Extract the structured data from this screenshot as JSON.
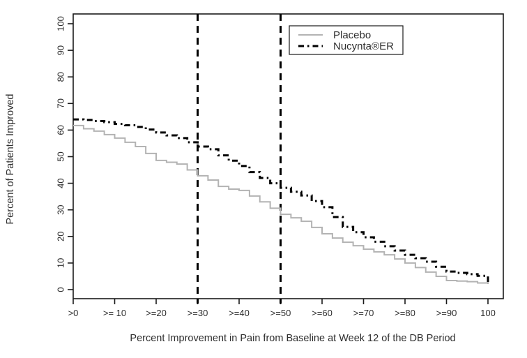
{
  "chart_data": {
    "type": "line",
    "subtype": "step-after",
    "title": "",
    "xlabel": "Percent Improvement in Pain from Baseline at Week 12 of the DB Period",
    "ylabel": "Percent of Patients Improved",
    "x_tick_values": [
      0,
      10,
      20,
      30,
      40,
      50,
      60,
      70,
      80,
      90,
      100
    ],
    "x_tick_labels": [
      ">0",
      ">= 10",
      ">=20",
      ">=30",
      ">=40",
      ">=50",
      ">=60",
      ">=70",
      ">=80",
      ">=90",
      "100"
    ],
    "y_tick_values": [
      0,
      10,
      20,
      30,
      40,
      50,
      60,
      70,
      80,
      90,
      100
    ],
    "y_tick_labels": [
      "0",
      "10",
      "20",
      "30",
      "40",
      "50",
      "60",
      "70",
      "80",
      "90",
      "100"
    ],
    "xlim": [
      0,
      100
    ],
    "ylim": [
      0,
      100
    ],
    "grid": false,
    "legend_position": "top-center",
    "x": [
      0,
      2.5,
      5,
      7.5,
      10,
      12.5,
      15,
      17.5,
      20,
      22.5,
      25,
      27.5,
      30,
      32.5,
      35,
      37.5,
      40,
      42.5,
      45,
      47.5,
      50,
      52.5,
      55,
      57.5,
      60,
      62.5,
      65,
      67.5,
      70,
      72.5,
      75,
      77.5,
      80,
      82.5,
      85,
      87.5,
      90,
      92.5,
      95,
      97.5,
      100
    ],
    "series": [
      {
        "name": "Placebo",
        "color": "#b3b3b3",
        "line_style": "solid",
        "line_width": 2,
        "values": [
          61.7,
          60.5,
          59.6,
          58.3,
          57,
          55.4,
          53.8,
          51.2,
          48.6,
          47.9,
          47.2,
          45,
          42.8,
          41.2,
          38.8,
          37.8,
          37.3,
          35.2,
          33,
          30.6,
          28.3,
          27,
          25.7,
          23.4,
          21,
          19.4,
          17.8,
          16.5,
          15.2,
          14.2,
          13.1,
          11.5,
          10,
          8.3,
          6.6,
          5,
          3.4,
          3.2,
          3,
          2.5,
          2.1
        ]
      },
      {
        "name": "Nucynta®ER",
        "color": "#000000",
        "line_style": "dash-dot",
        "line_width": 3,
        "values": [
          64,
          63.8,
          63.4,
          63,
          62.3,
          61.8,
          61.2,
          60.2,
          59.1,
          58,
          57,
          55.4,
          53.8,
          52.8,
          50.5,
          48.5,
          46.5,
          44.2,
          42,
          40,
          38.3,
          36.8,
          35.4,
          33.3,
          31,
          27.3,
          23.6,
          21.6,
          19.7,
          18,
          16.3,
          14.7,
          13.1,
          11.8,
          10.5,
          8.6,
          6.8,
          6.3,
          5.8,
          5.2,
          2
        ]
      }
    ],
    "reference_lines": {
      "vertical_x": [
        30,
        50
      ],
      "color": "#000000",
      "style": "dashed",
      "width": 3
    },
    "axis_color": "#1a1a1a"
  }
}
